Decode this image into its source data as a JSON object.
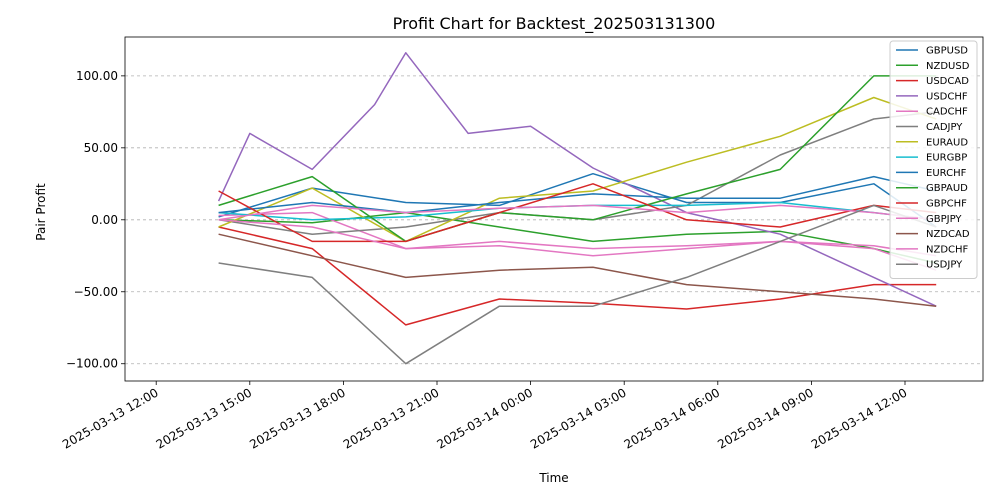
{
  "chart_data": {
    "type": "line",
    "title": "Profit Chart for Backtest_202503131300",
    "xlabel": "Time",
    "ylabel": "Pair Profit",
    "x_ticks": [
      "2025-03-13 12:00",
      "2025-03-13 15:00",
      "2025-03-13 18:00",
      "2025-03-13 21:00",
      "2025-03-14 00:00",
      "2025-03-14 03:00",
      "2025-03-14 06:00",
      "2025-03-14 09:00",
      "2025-03-14 12:00"
    ],
    "xlim": [
      "2025-03-13 11:00",
      "2025-03-14 14:30"
    ],
    "ylim": [
      -112,
      127
    ],
    "y_ticks": [
      -100,
      -50,
      0,
      50,
      100
    ],
    "y_tick_labels": [
      "−100.00",
      "−50.00",
      "0.00",
      "50.00",
      "100.00"
    ],
    "grid": "y-dashed",
    "legend_position": "top-right",
    "series": [
      {
        "name": "GBPUSD",
        "color": "#1f77b4",
        "x": [
          "2025-03-13 14:00",
          "2025-03-13 17:00",
          "2025-03-13 20:00",
          "2025-03-13 23:00",
          "2025-03-14 02:00",
          "2025-03-14 05:00",
          "2025-03-14 08:00",
          "2025-03-14 11:00",
          "2025-03-14 13:00"
        ],
        "y": [
          2,
          22,
          12,
          10,
          32,
          12,
          12,
          25,
          -5
        ]
      },
      {
        "name": "NZDUSD",
        "color": "#2ca02c",
        "x": [
          "2025-03-13 14:00",
          "2025-03-13 17:00",
          "2025-03-13 20:00",
          "2025-03-13 23:00",
          "2025-03-14 02:00",
          "2025-03-14 05:00",
          "2025-03-14 08:00",
          "2025-03-14 11:00",
          "2025-03-14 13:00"
        ],
        "y": [
          0,
          -2,
          5,
          -5,
          -15,
          -10,
          -8,
          -20,
          -30
        ]
      },
      {
        "name": "USDCAD",
        "color": "#d62728",
        "x": [
          "2025-03-13 14:00",
          "2025-03-13 17:00",
          "2025-03-13 20:00",
          "2025-03-13 23:00",
          "2025-03-14 02:00",
          "2025-03-14 05:00",
          "2025-03-14 08:00",
          "2025-03-14 11:00",
          "2025-03-14 13:00"
        ],
        "y": [
          -5,
          -20,
          -73,
          -55,
          -58,
          -62,
          -55,
          -45,
          -45
        ]
      },
      {
        "name": "USDCHF",
        "color": "#9467bd",
        "x": [
          "2025-03-13 14:00",
          "2025-03-13 15:00",
          "2025-03-13 17:00",
          "2025-03-13 19:00",
          "2025-03-13 20:00",
          "2025-03-13 22:00",
          "2025-03-14 00:00",
          "2025-03-14 02:00",
          "2025-03-14 05:00",
          "2025-03-14 08:00",
          "2025-03-14 11:00",
          "2025-03-14 13:00"
        ],
        "y": [
          13,
          60,
          35,
          80,
          116,
          60,
          65,
          36,
          5,
          -10,
          -40,
          -60
        ]
      },
      {
        "name": "CADCHF",
        "color": "#e377c2",
        "x": [
          "2025-03-13 14:00",
          "2025-03-13 17:00",
          "2025-03-13 20:00",
          "2025-03-13 23:00",
          "2025-03-14 02:00",
          "2025-03-14 05:00",
          "2025-03-14 08:00",
          "2025-03-14 11:00",
          "2025-03-14 13:00"
        ],
        "y": [
          3,
          5,
          -20,
          -18,
          -25,
          -20,
          -15,
          -18,
          -25
        ]
      },
      {
        "name": "CADJPY",
        "color": "#7f7f7f",
        "x": [
          "2025-03-13 14:00",
          "2025-03-13 17:00",
          "2025-03-13 20:00",
          "2025-03-13 23:00",
          "2025-03-14 02:00",
          "2025-03-14 05:00",
          "2025-03-14 08:00",
          "2025-03-14 11:00",
          "2025-03-14 13:00"
        ],
        "y": [
          0,
          -10,
          -5,
          5,
          0,
          10,
          45,
          70,
          75
        ]
      },
      {
        "name": "EURAUD",
        "color": "#bcbd22",
        "x": [
          "2025-03-13 14:00",
          "2025-03-13 17:00",
          "2025-03-13 20:00",
          "2025-03-13 23:00",
          "2025-03-14 02:00",
          "2025-03-14 05:00",
          "2025-03-14 08:00",
          "2025-03-14 11:00",
          "2025-03-14 13:00"
        ],
        "y": [
          -5,
          22,
          -15,
          15,
          20,
          40,
          58,
          85,
          70
        ]
      },
      {
        "name": "EURGBP",
        "color": "#17becf",
        "x": [
          "2025-03-13 14:00",
          "2025-03-13 17:00",
          "2025-03-13 20:00",
          "2025-03-13 23:00",
          "2025-03-14 02:00",
          "2025-03-14 05:00",
          "2025-03-14 08:00",
          "2025-03-14 11:00",
          "2025-03-14 13:00"
        ],
        "y": [
          5,
          0,
          2,
          8,
          10,
          10,
          12,
          5,
          0
        ]
      },
      {
        "name": "EURCHF",
        "color": "#1f77b4",
        "x": [
          "2025-03-13 14:00",
          "2025-03-13 17:00",
          "2025-03-13 20:00",
          "2025-03-13 23:00",
          "2025-03-14 02:00",
          "2025-03-14 05:00",
          "2025-03-14 08:00",
          "2025-03-14 11:00",
          "2025-03-14 13:00"
        ],
        "y": [
          5,
          12,
          5,
          12,
          18,
          15,
          15,
          30,
          20
        ]
      },
      {
        "name": "GBPAUD",
        "color": "#2ca02c",
        "x": [
          "2025-03-13 14:00",
          "2025-03-13 17:00",
          "2025-03-13 20:00",
          "2025-03-13 23:00",
          "2025-03-14 02:00",
          "2025-03-14 05:00",
          "2025-03-14 08:00",
          "2025-03-14 11:00",
          "2025-03-14 13:00"
        ],
        "y": [
          10,
          30,
          -15,
          5,
          0,
          18,
          35,
          100,
          100
        ]
      },
      {
        "name": "GBPCHF",
        "color": "#d62728",
        "x": [
          "2025-03-13 14:00",
          "2025-03-13 17:00",
          "2025-03-13 20:00",
          "2025-03-13 23:00",
          "2025-03-14 02:00",
          "2025-03-14 05:00",
          "2025-03-14 08:00",
          "2025-03-14 11:00",
          "2025-03-14 13:00"
        ],
        "y": [
          20,
          -15,
          -15,
          5,
          25,
          0,
          -5,
          10,
          5
        ]
      },
      {
        "name": "GBPJPY",
        "color": "#e377c2",
        "x": [
          "2025-03-13 14:00",
          "2025-03-13 17:00",
          "2025-03-13 20:00",
          "2025-03-13 23:00",
          "2025-03-14 02:00",
          "2025-03-14 05:00",
          "2025-03-14 08:00",
          "2025-03-14 11:00",
          "2025-03-14 13:00"
        ],
        "y": [
          0,
          10,
          5,
          8,
          10,
          5,
          10,
          5,
          0
        ]
      },
      {
        "name": "NZDCAD",
        "color": "#8c564b",
        "x": [
          "2025-03-13 14:00",
          "2025-03-13 17:00",
          "2025-03-13 20:00",
          "2025-03-13 23:00",
          "2025-03-14 02:00",
          "2025-03-14 05:00",
          "2025-03-14 08:00",
          "2025-03-14 11:00",
          "2025-03-14 13:00"
        ],
        "y": [
          -10,
          -25,
          -40,
          -35,
          -33,
          -45,
          -50,
          -55,
          -60
        ]
      },
      {
        "name": "NZDCHF",
        "color": "#e377c2",
        "x": [
          "2025-03-13 14:00",
          "2025-03-13 17:00",
          "2025-03-13 20:00",
          "2025-03-13 23:00",
          "2025-03-14 02:00",
          "2025-03-14 05:00",
          "2025-03-14 08:00",
          "2025-03-14 11:00",
          "2025-03-14 13:00"
        ],
        "y": [
          0,
          -5,
          -20,
          -15,
          -20,
          -18,
          -15,
          -20,
          -35
        ]
      },
      {
        "name": "USDJPY",
        "color": "#7f7f7f",
        "x": [
          "2025-03-13 14:00",
          "2025-03-13 17:00",
          "2025-03-13 20:00",
          "2025-03-13 23:00",
          "2025-03-14 02:00",
          "2025-03-14 05:00",
          "2025-03-14 08:00",
          "2025-03-14 11:00",
          "2025-03-14 13:00"
        ],
        "y": [
          -30,
          -40,
          -100,
          -60,
          -60,
          -40,
          -15,
          10,
          -5
        ]
      }
    ]
  }
}
